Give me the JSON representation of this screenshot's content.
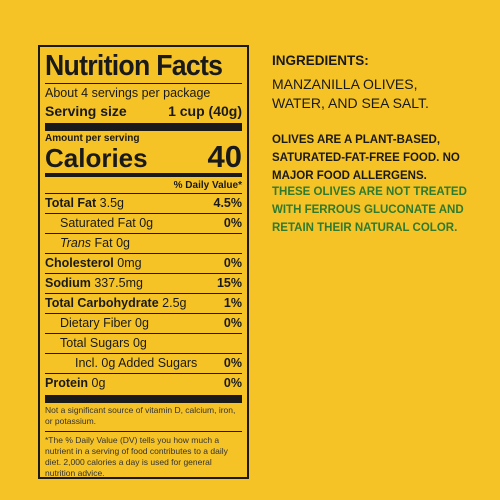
{
  "label": {
    "title": "Nutrition Facts",
    "servings": "About 4 servings per package",
    "serving_size_label": "Serving size",
    "serving_size": "1 cup (40g)",
    "amount_per_serving": "Amount per serving",
    "calories_label": "Calories",
    "calories": "40",
    "dv_header": "% Daily Value*",
    "rows": [
      {
        "name": "Total Fat",
        "amount": "3.5g",
        "dv": "4.5%"
      },
      {
        "name": "Saturated Fat",
        "amount": "0g",
        "dv": "0%"
      },
      {
        "name_italic": "Trans",
        "name": "Fat",
        "amount": "0g"
      },
      {
        "name": "Cholesterol",
        "amount": "0mg",
        "dv": "0%"
      },
      {
        "name": "Sodium",
        "amount": "337.5mg",
        "dv": "15%"
      },
      {
        "name": "Total Carbohydrate",
        "amount": "2.5g",
        "dv": "1%"
      },
      {
        "name": "Dietary Fiber",
        "amount": "0g",
        "dv": "0%"
      },
      {
        "name": "Total Sugars",
        "amount": "0g"
      },
      {
        "name": "Incl. 0g Added Sugars",
        "dv": "0%"
      },
      {
        "name": "Protein",
        "amount": "0g",
        "dv": "0%"
      }
    ],
    "footnote_1": "Not a significant source of vitamin D, calcium, iron, or potassium.",
    "footnote_2": "*The % Daily Value (DV) tells you how much a nutrient in a serving of food contributes to a daily diet. 2,000 calories a day is used for general nutrition advice."
  },
  "ingredients": {
    "heading": "INGREDIENTS:",
    "text": "MANZANILLA OLIVES, WATER, AND SEA SALT.",
    "note_1": "OLIVES ARE A PLANT-BASED, SATURATED-FAT-FREE FOOD. NO MAJOR FOOD ALLERGENS.",
    "note_2": "THESE OLIVES ARE NOT TREATED WITH FERROUS GLUCONATE AND RETAIN THEIR NATURAL COLOR."
  }
}
